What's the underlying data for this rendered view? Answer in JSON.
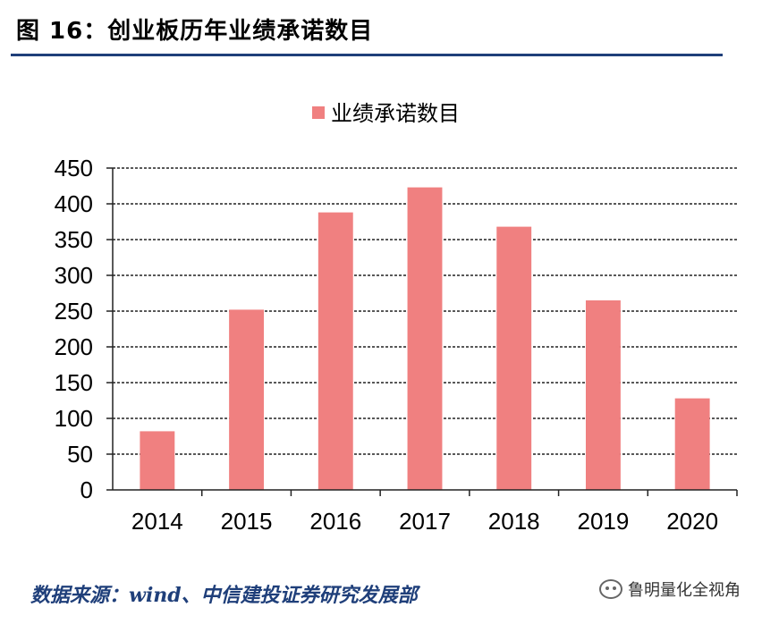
{
  "header": {
    "title": "图 16：创业板历年业绩承诺数目"
  },
  "chart_data": {
    "type": "bar",
    "categories": [
      "2014",
      "2015",
      "2016",
      "2017",
      "2018",
      "2019",
      "2020"
    ],
    "series": [
      {
        "name": "业绩承诺数目",
        "values": [
          82,
          252,
          388,
          423,
          368,
          265,
          128
        ],
        "color": "#f08080"
      }
    ],
    "ylim": [
      0,
      450
    ],
    "yticks": [
      0,
      50,
      100,
      150,
      200,
      250,
      300,
      350,
      400,
      450
    ],
    "grid": true,
    "legend_position": "top-center"
  },
  "footer": {
    "source": "数据来源：wind、中信建投证券研究发展部",
    "watermark": "鲁明量化全视角"
  }
}
